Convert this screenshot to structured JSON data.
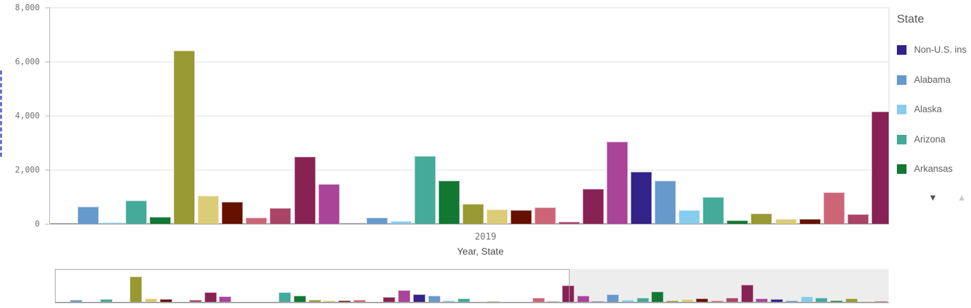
{
  "axes": {
    "x_group_label": "2019",
    "x_axis_title": "Year, State",
    "y_tick_labels": [
      "0",
      "2,000",
      "4,000",
      "6,000",
      "8,000"
    ],
    "y_tick_values": [
      0,
      2000,
      4000,
      6000,
      8000
    ]
  },
  "legend": {
    "title": "State",
    "scroll_down_icon": "▼",
    "scroll_up_icon": "▲"
  },
  "chart_data": {
    "type": "bar",
    "title": "",
    "xlabel": "Year, State",
    "ylabel": "",
    "x_group_label": "2019",
    "ylim": [
      0,
      8000
    ],
    "y_ticks": [
      0,
      2000,
      4000,
      6000,
      8000
    ],
    "grid": true,
    "legend_position": "right",
    "legend_title": "State",
    "legend_visible_items": [
      {
        "label": "Non-U.S. ins",
        "color": "#332288"
      },
      {
        "label": "Alabama",
        "color": "#6699cc"
      },
      {
        "label": "Alaska",
        "color": "#88ccee"
      },
      {
        "label": "Arizona",
        "color": "#44aa99"
      },
      {
        "label": "Arkansas",
        "color": "#117733"
      }
    ],
    "palette": [
      "#332288",
      "#6699cc",
      "#88ccee",
      "#44aa99",
      "#117733",
      "#999933",
      "#ddcc77",
      "#661100",
      "#cc6677",
      "#aa4466",
      "#882255",
      "#aa4499"
    ],
    "values": [
      30,
      640,
      60,
      860,
      250,
      6400,
      1050,
      810,
      240,
      590,
      2490,
      1460,
      20,
      230,
      100,
      2510,
      1590,
      730,
      520,
      510,
      600,
      80,
      1290,
      3040,
      1920,
      1590,
      510,
      1000,
      130,
      380,
      180,
      190,
      1160,
      350,
      4160,
      1700,
      300,
      2000,
      650,
      1100,
      2650,
      470,
      780,
      950,
      470,
      1250,
      4350,
      950,
      800,
      470,
      1550,
      1250,
      470,
      950,
      300,
      300
    ],
    "visible_bars_in_main_view": 35,
    "navigator": {
      "window_covers_bars": "1-35",
      "total_bars": 56
    }
  }
}
